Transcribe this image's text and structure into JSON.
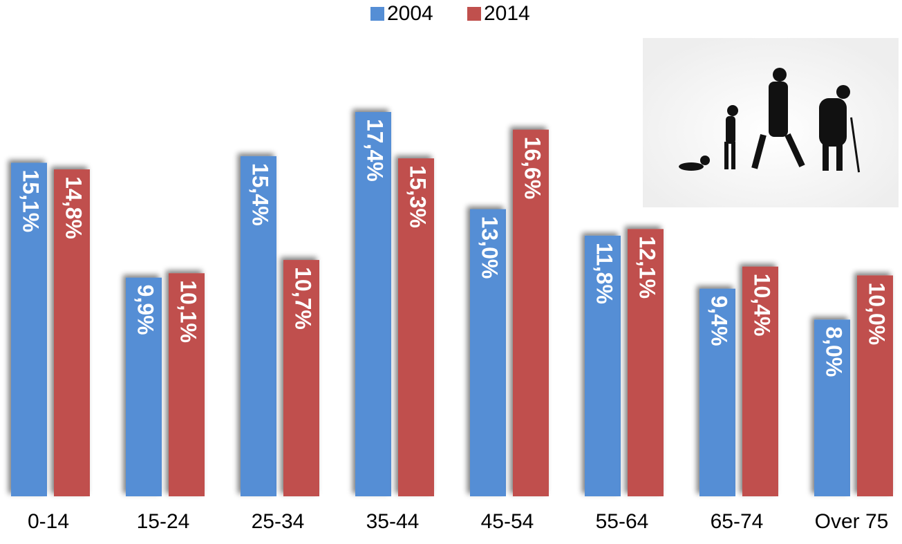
{
  "chart_data": {
    "type": "bar",
    "categories": [
      "0-14",
      "15-24",
      "25-34",
      "35-44",
      "45-54",
      "55-64",
      "65-74",
      "Over 75"
    ],
    "series": [
      {
        "name": "2004",
        "color": "#558ed5",
        "values": [
          15.1,
          9.9,
          15.4,
          17.4,
          13.0,
          11.8,
          9.4,
          8.0
        ],
        "value_labels": [
          "15,1%",
          "9,9%",
          "15,4%",
          "17,4%",
          "13,0%",
          "11,8%",
          "9,4%",
          "8,0%"
        ]
      },
      {
        "name": "2014",
        "color": "#c0504d",
        "values": [
          14.8,
          10.1,
          10.7,
          15.3,
          16.6,
          12.1,
          10.4,
          10.0
        ],
        "value_labels": [
          "14,8%",
          "10,1%",
          "10,7%",
          "15,3%",
          "16,6%",
          "12,1%",
          "10,4%",
          "10,0%"
        ]
      }
    ],
    "legend": "top"
  }
}
